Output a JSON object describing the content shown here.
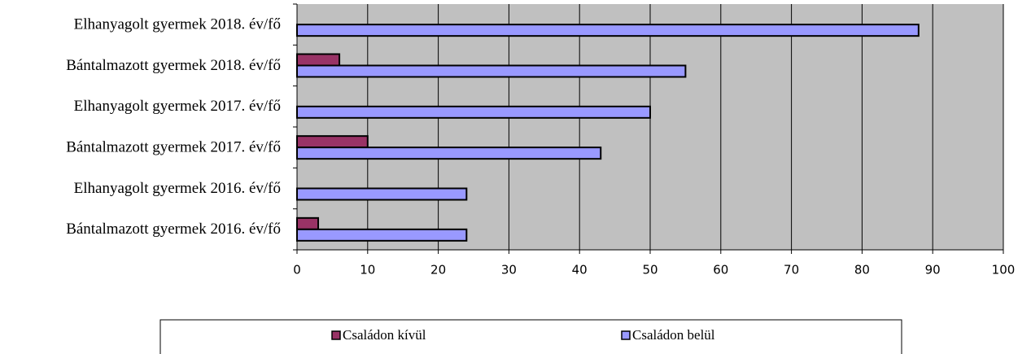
{
  "chart_data": {
    "type": "hbar",
    "categories": [
      "Elhanyagolt gyermek 2018. év/fő",
      "Bántalmazott gyermek 2018. év/fő",
      "Elhanyagolt gyermek 2017. év/fő",
      "Bántalmazott gyermek 2017. év/fő",
      "Elhanyagolt gyermek 2016. év/fő",
      "Bántalmazott gyermek 2016. év/fő"
    ],
    "series": [
      {
        "name": "Családon kívül",
        "color": "#993366",
        "values": [
          0,
          6,
          0,
          10,
          0,
          3
        ]
      },
      {
        "name": "Családon belül",
        "color": "#9999ff",
        "values": [
          88,
          55,
          50,
          43,
          24,
          24
        ]
      }
    ],
    "xlim": [
      0,
      100
    ],
    "xticks": [
      0,
      10,
      20,
      30,
      40,
      50,
      60,
      70,
      80,
      90,
      100
    ],
    "grid": true,
    "legend": "bottom"
  }
}
